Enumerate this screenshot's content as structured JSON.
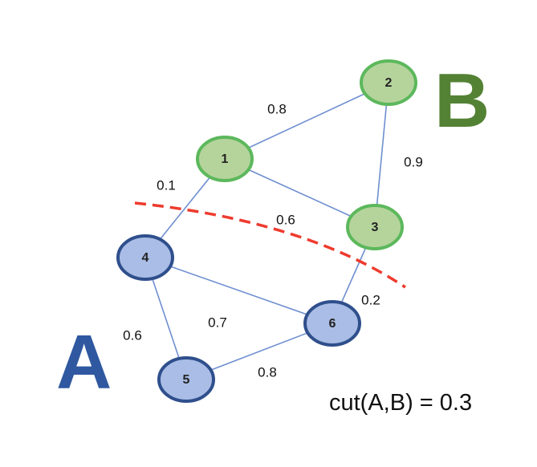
{
  "colors": {
    "edge": "#6f8fd0",
    "group_a_fill": "#a9bde6",
    "group_a_stroke": "#2f4f8c",
    "group_a_text": "#2f58a0",
    "group_b_fill": "#b5d49c",
    "group_b_stroke": "#5cb85c",
    "group_b_text": "#548235",
    "cut_line": "#ee3b2e"
  },
  "group_a_label": "A",
  "group_b_label": "B",
  "formula": "cut(A,B) = 0.3",
  "nodes": [
    {
      "id": "1",
      "group": "B"
    },
    {
      "id": "2",
      "group": "B"
    },
    {
      "id": "3",
      "group": "B"
    },
    {
      "id": "4",
      "group": "A"
    },
    {
      "id": "5",
      "group": "A"
    },
    {
      "id": "6",
      "group": "A"
    }
  ],
  "edges": [
    {
      "from": "1",
      "to": "2",
      "weight": "0.8"
    },
    {
      "from": "2",
      "to": "3",
      "weight": "0.9"
    },
    {
      "from": "1",
      "to": "3",
      "weight": "0.6"
    },
    {
      "from": "1",
      "to": "4",
      "weight": "0.1"
    },
    {
      "from": "3",
      "to": "6",
      "weight": "0.2"
    },
    {
      "from": "4",
      "to": "6",
      "weight": "0.7"
    },
    {
      "from": "4",
      "to": "5",
      "weight": "0.6"
    },
    {
      "from": "5",
      "to": "6",
      "weight": "0.8"
    }
  ]
}
